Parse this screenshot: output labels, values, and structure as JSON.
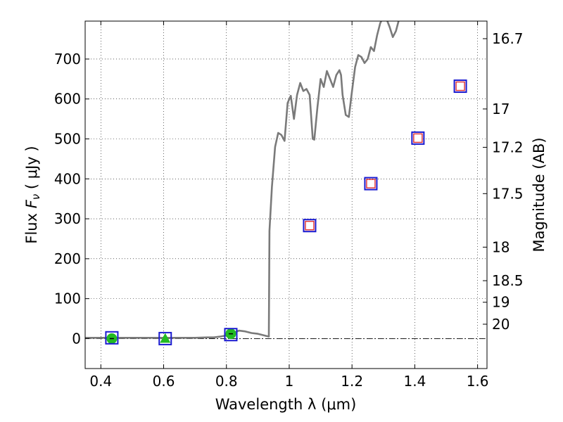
{
  "chart_data": {
    "type": "scatter",
    "xlabel": "Wavelength  λ (μm)",
    "ylabel": "Flux  F_ν  ( μJy )",
    "y2label": "Magnitude (AB)",
    "xlim": [
      0.35,
      1.63
    ],
    "ylim": [
      -75,
      795
    ],
    "grid": true,
    "x_ticks": [
      0.4,
      0.6,
      0.8,
      1.0,
      1.2,
      1.4,
      1.6
    ],
    "x_tick_labels": [
      "0.4",
      "0.6",
      "0.8",
      "1",
      "1.2",
      "1.4",
      "1.6"
    ],
    "y_ticks": [
      0,
      100,
      200,
      300,
      400,
      500,
      600,
      700
    ],
    "y_tick_labels": [
      "0",
      "100",
      "200",
      "300",
      "400",
      "500",
      "600",
      "700"
    ],
    "y2_ticks": [
      {
        "label": "16.7",
        "flux": 751
      },
      {
        "label": "17",
        "flux": 575
      },
      {
        "label": "17.2",
        "flux": 479
      },
      {
        "label": "17.5",
        "flux": 363
      },
      {
        "label": "18",
        "flux": 229
      },
      {
        "label": "18.5",
        "flux": 145
      },
      {
        "label": "19",
        "flux": 91
      },
      {
        "label": "20",
        "flux": 36
      }
    ],
    "model_spectrum": {
      "color": "#7a7a7a",
      "x": [
        0.35,
        0.7,
        0.74,
        0.76,
        0.78,
        0.8,
        0.82,
        0.84,
        0.86,
        0.88,
        0.9,
        0.92,
        0.93,
        0.935,
        0.937,
        0.945,
        0.955,
        0.965,
        0.975,
        0.985,
        0.995,
        1.005,
        1.015,
        1.025,
        1.035,
        1.045,
        1.055,
        1.065,
        1.075,
        1.08,
        1.09,
        1.1,
        1.11,
        1.12,
        1.13,
        1.14,
        1.15,
        1.16,
        1.165,
        1.17,
        1.18,
        1.19,
        1.2,
        1.21,
        1.22,
        1.23,
        1.24,
        1.25,
        1.26,
        1.27,
        1.28,
        1.29,
        1.3,
        1.31,
        1.32,
        1.33,
        1.34,
        1.35
      ],
      "y": [
        2,
        2,
        3,
        3,
        5,
        8,
        14,
        20,
        18,
        14,
        12,
        8,
        6,
        5,
        270,
        380,
        480,
        515,
        510,
        495,
        590,
        608,
        550,
        610,
        640,
        620,
        625,
        610,
        500,
        498,
        580,
        650,
        630,
        670,
        650,
        630,
        660,
        672,
        660,
        610,
        560,
        555,
        620,
        680,
        710,
        705,
        690,
        700,
        730,
        720,
        760,
        790,
        805,
        800,
        780,
        755,
        770,
        800
      ]
    },
    "errorbar_line": {
      "y": 0,
      "color": "#000000",
      "style": "dash-dot"
    },
    "observed_points": [
      {
        "x": 0.435,
        "y": 0,
        "marker": "circle",
        "color": "#22bb22"
      },
      {
        "x": 0.605,
        "y": 0,
        "marker": "triangle",
        "color": "#22bb22"
      },
      {
        "x": 0.814,
        "y": 12,
        "marker": "circle",
        "color": "#22bb22"
      }
    ],
    "model_photometry": [
      {
        "x": 0.435,
        "y": 2,
        "color": "#1a1ad0"
      },
      {
        "x": 0.605,
        "y": 0,
        "color": "#1a1ad0"
      },
      {
        "x": 0.814,
        "y": 10,
        "color": "#1a1ad0"
      },
      {
        "x": 1.065,
        "y": 283,
        "color": "#1a1ad0"
      },
      {
        "x": 1.26,
        "y": 388,
        "color": "#1a1ad0"
      },
      {
        "x": 1.41,
        "y": 502,
        "color": "#1a1ad0"
      },
      {
        "x": 1.545,
        "y": 632,
        "color": "#1a1ad0"
      }
    ],
    "upper_limit_points": [
      {
        "x": 1.065,
        "y": 283,
        "color": "#e03030"
      },
      {
        "x": 1.26,
        "y": 388,
        "color": "#e03030"
      },
      {
        "x": 1.41,
        "y": 502,
        "color": "#e03030"
      },
      {
        "x": 1.545,
        "y": 632,
        "color": "#e03030"
      }
    ]
  }
}
